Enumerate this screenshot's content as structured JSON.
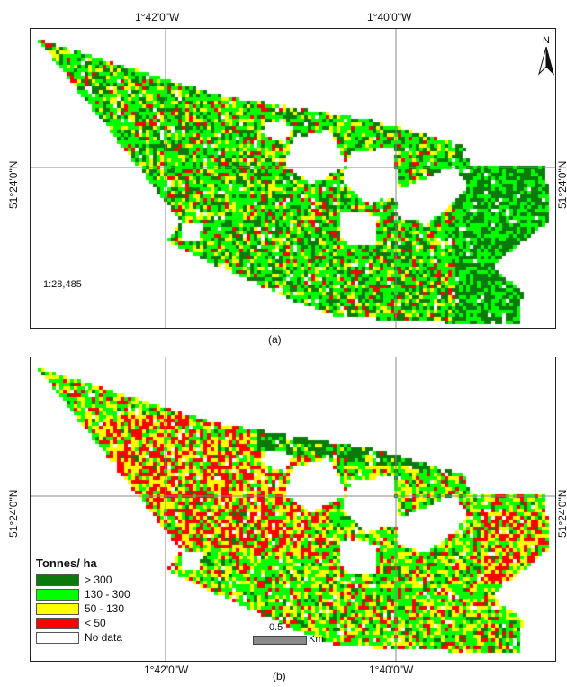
{
  "top_labels": {
    "left_lon": "1°42'0\"W",
    "right_lon": "1°40'0\"W"
  },
  "bottom_labels": {
    "left_lon": "1°42'0\"W",
    "right_lon": "1°40'0\"W"
  },
  "left_lat": "51°24'0\"N",
  "right_lat": "51°24'0\"N",
  "panel_a": {
    "caption": "(a)",
    "scale_text": "1:28,485",
    "north_label": "N"
  },
  "panel_b": {
    "caption": "(b)",
    "scale_value": "0.5",
    "scale_unit": "Km"
  },
  "legend": {
    "title": "Tonnes/ ha",
    "items": [
      {
        "label": "> 300",
        "color": "#0b7a0b"
      },
      {
        "label": "130 - 300",
        "color": "#00ff00"
      },
      {
        "label": "50 - 130",
        "color": "#ffff00"
      },
      {
        "label": "< 50",
        "color": "#ff0000"
      },
      {
        "label": "No data",
        "color": "#ffffff"
      }
    ]
  },
  "colors": {
    "nodata": "#ffffff",
    "grid": "#888888"
  }
}
